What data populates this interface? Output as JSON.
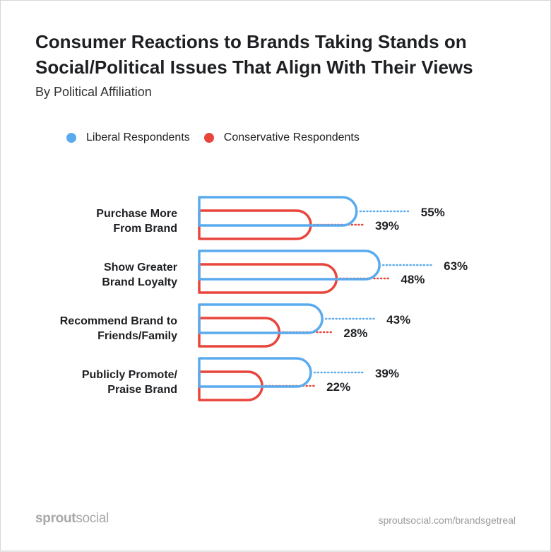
{
  "chart_data": {
    "type": "bar",
    "title": "Consumer Reactions to Brands Taking Stands on Social/Political Issues That Align With Their Views",
    "subtitle": "By Political Affiliation",
    "categories": [
      "Purchase More\nFrom Brand",
      "Show Greater\nBrand Loyalty",
      "Recommend Brand to\nFriends/Family",
      "Publicly Promote/\nPraise  Brand"
    ],
    "series": [
      {
        "name": "Liberal Respondents",
        "color": "#5aabee",
        "values": [
          55,
          63,
          43,
          39
        ],
        "labels": [
          "55%",
          "63%",
          "43%",
          "39%"
        ]
      },
      {
        "name": "Conservative Respondents",
        "color": "#e8453c",
        "values": [
          39,
          48,
          28,
          22
        ],
        "labels": [
          "39%",
          "48%",
          "28%",
          "22%"
        ]
      }
    ],
    "xlim": [
      0,
      100
    ],
    "xlabel": "",
    "ylabel": "",
    "grid": false,
    "legend": "top-left"
  },
  "footer": {
    "brand_bold": "sprout",
    "brand_rest": "social",
    "url": "sproutsocial.com/brandsgetreal"
  }
}
